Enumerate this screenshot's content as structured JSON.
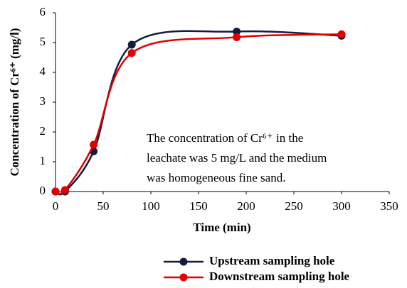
{
  "chart_data": {
    "type": "line",
    "x_label": "Time (min)",
    "y_label": "Concentration of Cr⁶⁺ (mg/l)",
    "annotation": [
      "The concentration of Cr⁶⁺ in the",
      "leachate was 5 mg/L and the medium",
      "was homogeneous fine sand."
    ],
    "x": [
      0,
      10,
      40,
      80,
      190,
      300
    ],
    "series": [
      {
        "name": "Upstream sampling hole",
        "color": "#141c3a",
        "values": [
          0,
          0,
          1.35,
          4.93,
          5.37,
          5.23
        ]
      },
      {
        "name": "Downstream sampling hole",
        "color": "#e00000",
        "values": [
          0,
          0.05,
          1.57,
          4.65,
          5.18,
          5.28
        ]
      }
    ],
    "xlim": [
      0,
      350
    ],
    "xticks": [
      0,
      50,
      100,
      150,
      200,
      250,
      300,
      350
    ],
    "ylim": [
      0,
      6
    ],
    "yticks": [
      0,
      1,
      2,
      3,
      4,
      5,
      6
    ],
    "grid": false,
    "legend": "bottom"
  }
}
